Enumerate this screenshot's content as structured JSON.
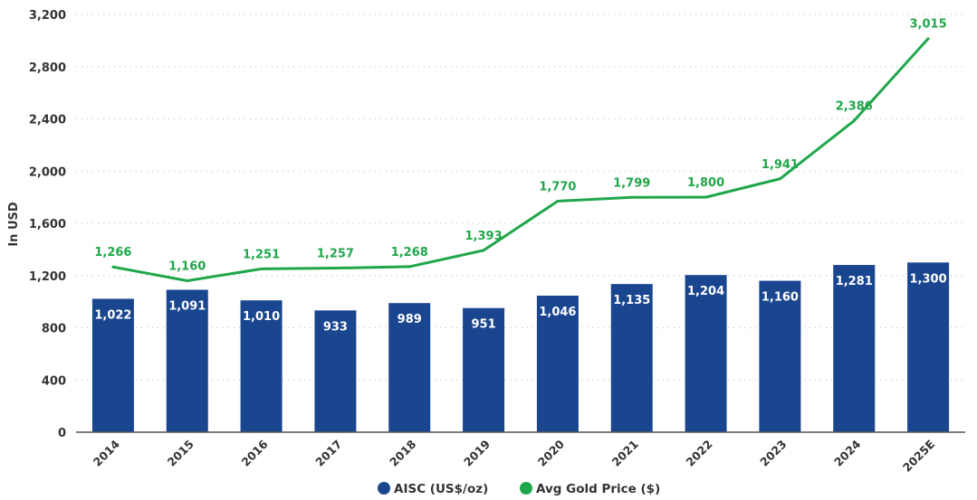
{
  "chart_data": {
    "type": "bar",
    "title": "",
    "xlabel": "",
    "ylabel": "In USD",
    "ylim": [
      0,
      3200
    ],
    "yticks": [
      0,
      400,
      800,
      1200,
      1600,
      2000,
      2400,
      2800,
      3200
    ],
    "ytick_labels": [
      "0",
      "400",
      "800",
      "1,200",
      "1,600",
      "2,000",
      "2,400",
      "2,800",
      "3,200"
    ],
    "grid": true,
    "legend_position": "bottom-center",
    "categories": [
      "2014",
      "2015",
      "2016",
      "2017",
      "2018",
      "2019",
      "2020",
      "2021",
      "2022",
      "2023",
      "2024",
      "2025E"
    ],
    "series": [
      {
        "name": "AISC (US$/oz)",
        "type": "bar",
        "color": "#1a468f",
        "values": [
          1022,
          1091,
          1010,
          933,
          989,
          951,
          1046,
          1135,
          1204,
          1160,
          1281,
          1300
        ],
        "labels": [
          "1,022",
          "1,091",
          "1,010",
          "933",
          "989",
          "951",
          "1,046",
          "1,135",
          "1,204",
          "1,160",
          "1,281",
          "1,300"
        ]
      },
      {
        "name": "Avg Gold Price ($)",
        "type": "line",
        "color": "#20a64a",
        "values": [
          1266,
          1160,
          1251,
          1257,
          1268,
          1393,
          1770,
          1799,
          1800,
          1941,
          2386,
          3015
        ],
        "labels": [
          "1,266",
          "1,160",
          "1,251",
          "1,257",
          "1,268",
          "1,393",
          "1,770",
          "1,799",
          "1,800",
          "1,941",
          "2,386",
          "3,015"
        ]
      }
    ]
  }
}
